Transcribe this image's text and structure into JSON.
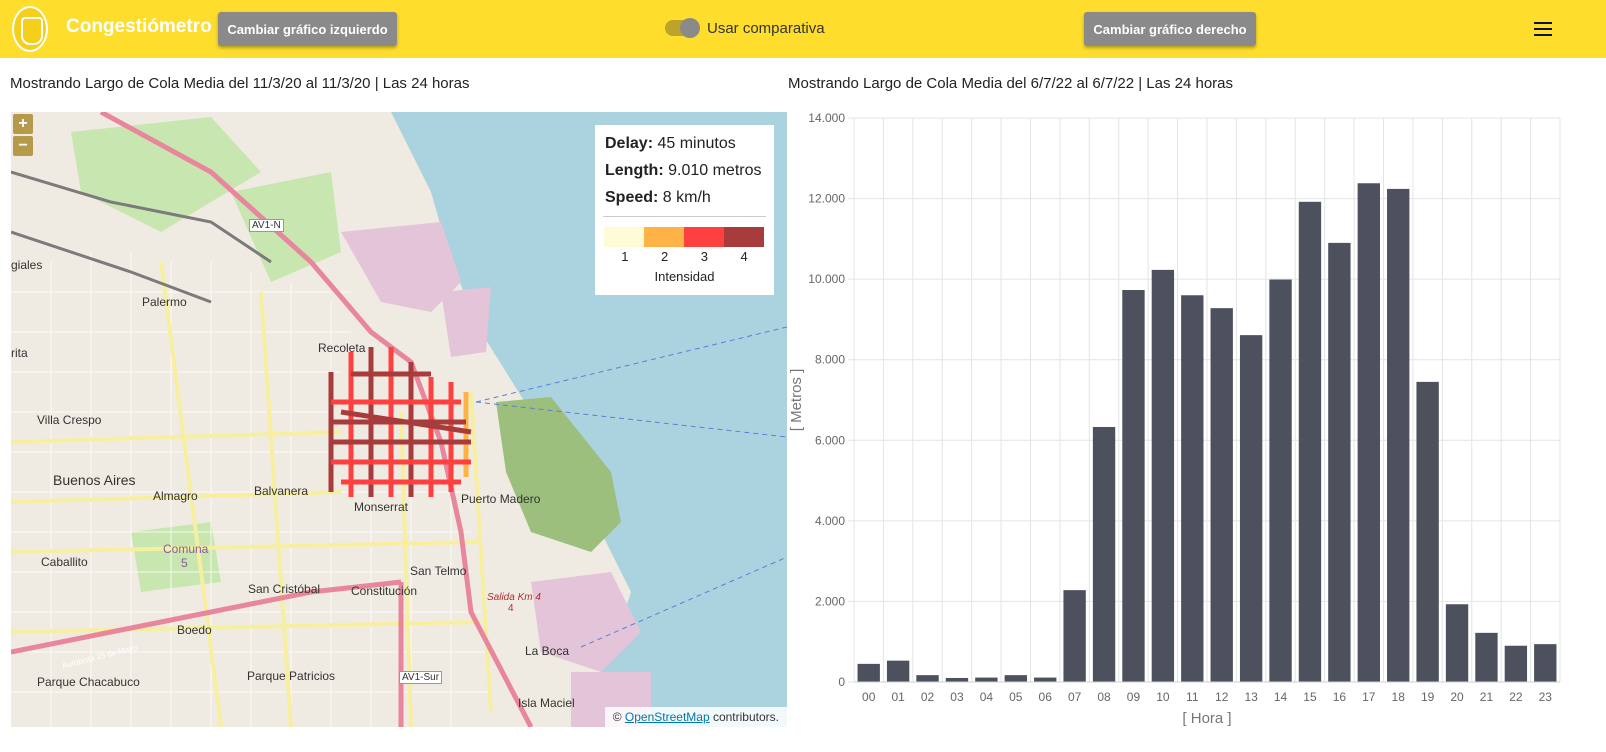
{
  "header": {
    "brand": "Congestiómetro",
    "btn_left": "Cambiar gráfico izquierdo",
    "btn_right": "Cambiar gráfico derecho",
    "toggle_label": "Usar comparativa",
    "toggle_on": true
  },
  "left_caption": "Mostrando Largo de Cola Media del 11/3/20 al 11/3/20 | Las 24 horas",
  "right_caption": "Mostrando Largo de Cola Media del 6/7/22 al 6/7/22 | Las 24 horas",
  "map": {
    "zoom_in": "+",
    "zoom_out": "−",
    "info": {
      "delay_key": "Delay:",
      "delay_value": "45 minutos",
      "length_key": "Length:",
      "length_value": "9.010 metros",
      "speed_key": "Speed:",
      "speed_value": "8 km/h"
    },
    "legend": {
      "colors": [
        "#fffbd6",
        "#ffb347",
        "#ff4040",
        "#a83c3c"
      ],
      "labels": [
        "1",
        "2",
        "3",
        "4"
      ],
      "title": "Intensidad"
    },
    "labels": {
      "palermo": "Palermo",
      "recoleta": "Recoleta",
      "villa_crespo": "Villa Crespo",
      "buenos_aires": "Buenos Aires",
      "almagro": "Almagro",
      "balvanera": "Balvanera",
      "monserrat": "Monserrat",
      "puerto_madero": "Puerto Madero",
      "caballito": "Caballito",
      "comuna": "Comuna",
      "comuna_num": "5",
      "san_telmo": "San Telmo",
      "san_cristobal": "San Cristóbal",
      "constitucion": "Constitución",
      "boedo": "Boedo",
      "la_boca": "La Boca",
      "parque_chacabuco": "Parque Chacabuco",
      "parque_patricios": "Parque Patricios",
      "isla_maciel": "Isla Maciel",
      "av1n": "AV1-N",
      "av1sur": "AV1-Sur",
      "giales": "giales",
      "rita": "rita",
      "salida": "Salida Km 4",
      "salida_num": "4",
      "autopista": "Autopista 25 de Mayo"
    },
    "attribution_prefix": "© ",
    "attribution_link": "OpenStreetMap",
    "attribution_suffix": " contributors."
  },
  "chart_data": {
    "type": "bar",
    "categories": [
      "00",
      "01",
      "02",
      "03",
      "04",
      "05",
      "06",
      "07",
      "08",
      "09",
      "10",
      "11",
      "12",
      "13",
      "14",
      "15",
      "16",
      "17",
      "18",
      "19",
      "20",
      "21",
      "22",
      "23"
    ],
    "values": [
      450,
      530,
      170,
      100,
      110,
      170,
      110,
      2280,
      6330,
      9730,
      10230,
      9600,
      9280,
      8610,
      9990,
      11920,
      10900,
      12380,
      12240,
      7450,
      1930,
      1220,
      900,
      940
    ],
    "ylim": [
      0,
      14000
    ],
    "yticks": [
      "0",
      "2.000",
      "4.000",
      "6.000",
      "8.000",
      "10.000",
      "12.000",
      "14.000"
    ],
    "xlabel": "[ Hora ]",
    "ylabel": "[ Metros ]",
    "grid": true,
    "bar_color": "#4c515d"
  }
}
